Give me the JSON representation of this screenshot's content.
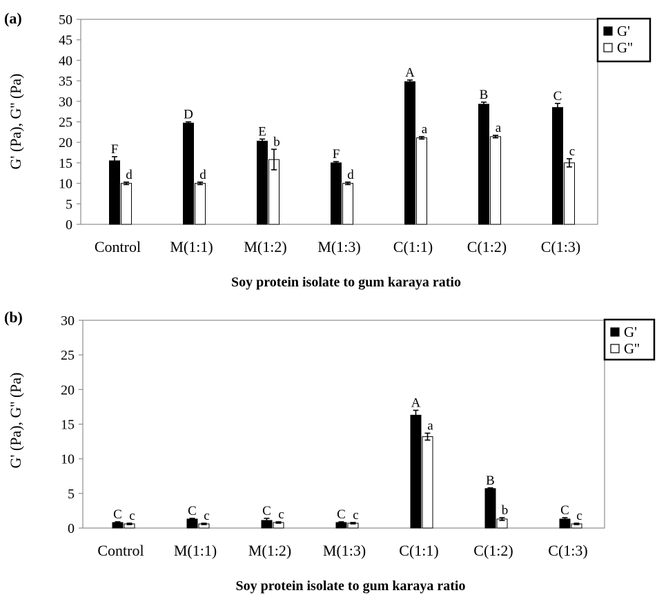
{
  "chart_data": [
    {
      "type": "bar",
      "panel_label": "(a)",
      "categories": [
        "Control",
        "M(1:1)",
        "M(1:2)",
        "M(1:3)",
        "C(1:1)",
        "C(1:2)",
        "C(1:3)"
      ],
      "ylabel": "G' (Pa), G'' (Pa)",
      "xlabel": "Soy protein isolate to gum karaya ratio",
      "ylim": [
        0,
        50
      ],
      "yticks": [
        0,
        5,
        10,
        15,
        20,
        25,
        30,
        35,
        40,
        45,
        50
      ],
      "legend_position": "right",
      "grid": false,
      "series": [
        {
          "name": "G'",
          "color": "#000000",
          "values": [
            15.5,
            24.7,
            20.3,
            15.0,
            34.8,
            29.3,
            28.5
          ],
          "errors": [
            1.0,
            0.3,
            0.5,
            0.3,
            0.4,
            0.5,
            1.0
          ],
          "letters": [
            "F",
            "D",
            "E",
            "F",
            "A",
            "B",
            "C"
          ]
        },
        {
          "name": "G''",
          "color": "#ffffff",
          "values": [
            10.0,
            10.0,
            15.8,
            10.0,
            21.1,
            21.4,
            15.0
          ],
          "errors": [
            0.3,
            0.3,
            2.5,
            0.3,
            0.3,
            0.3,
            1.0
          ],
          "letters": [
            "d",
            "d",
            "b",
            "d",
            "a",
            "a",
            "c"
          ]
        }
      ]
    },
    {
      "type": "bar",
      "panel_label": "(b)",
      "categories": [
        "Control",
        "M(1:1)",
        "M(1:2)",
        "M(1:3)",
        "C(1:1)",
        "C(1:2)",
        "C(1:3)"
      ],
      "ylabel": "G' (Pa), G'' (Pa)",
      "xlabel": "Soy protein isolate to gum karaya ratio",
      "ylim": [
        0,
        30
      ],
      "yticks": [
        0,
        5,
        10,
        15,
        20,
        25,
        30
      ],
      "legend_position": "right",
      "grid": false,
      "series": [
        {
          "name": "G'",
          "color": "#000000",
          "values": [
            0.8,
            1.3,
            1.1,
            0.8,
            16.3,
            5.7,
            1.3
          ],
          "errors": [
            0.1,
            0.1,
            0.3,
            0.1,
            0.7,
            0.1,
            0.2
          ],
          "letters": [
            "C",
            "C",
            "C",
            "C",
            "A",
            "B",
            "C"
          ]
        },
        {
          "name": "G''",
          "color": "#ffffff",
          "values": [
            0.6,
            0.6,
            0.8,
            0.7,
            13.2,
            1.3,
            0.6
          ],
          "errors": [
            0.1,
            0.1,
            0.1,
            0.1,
            0.5,
            0.2,
            0.1
          ],
          "letters": [
            "c",
            "c",
            "c",
            "c",
            "a",
            "b",
            "c"
          ]
        }
      ]
    }
  ]
}
